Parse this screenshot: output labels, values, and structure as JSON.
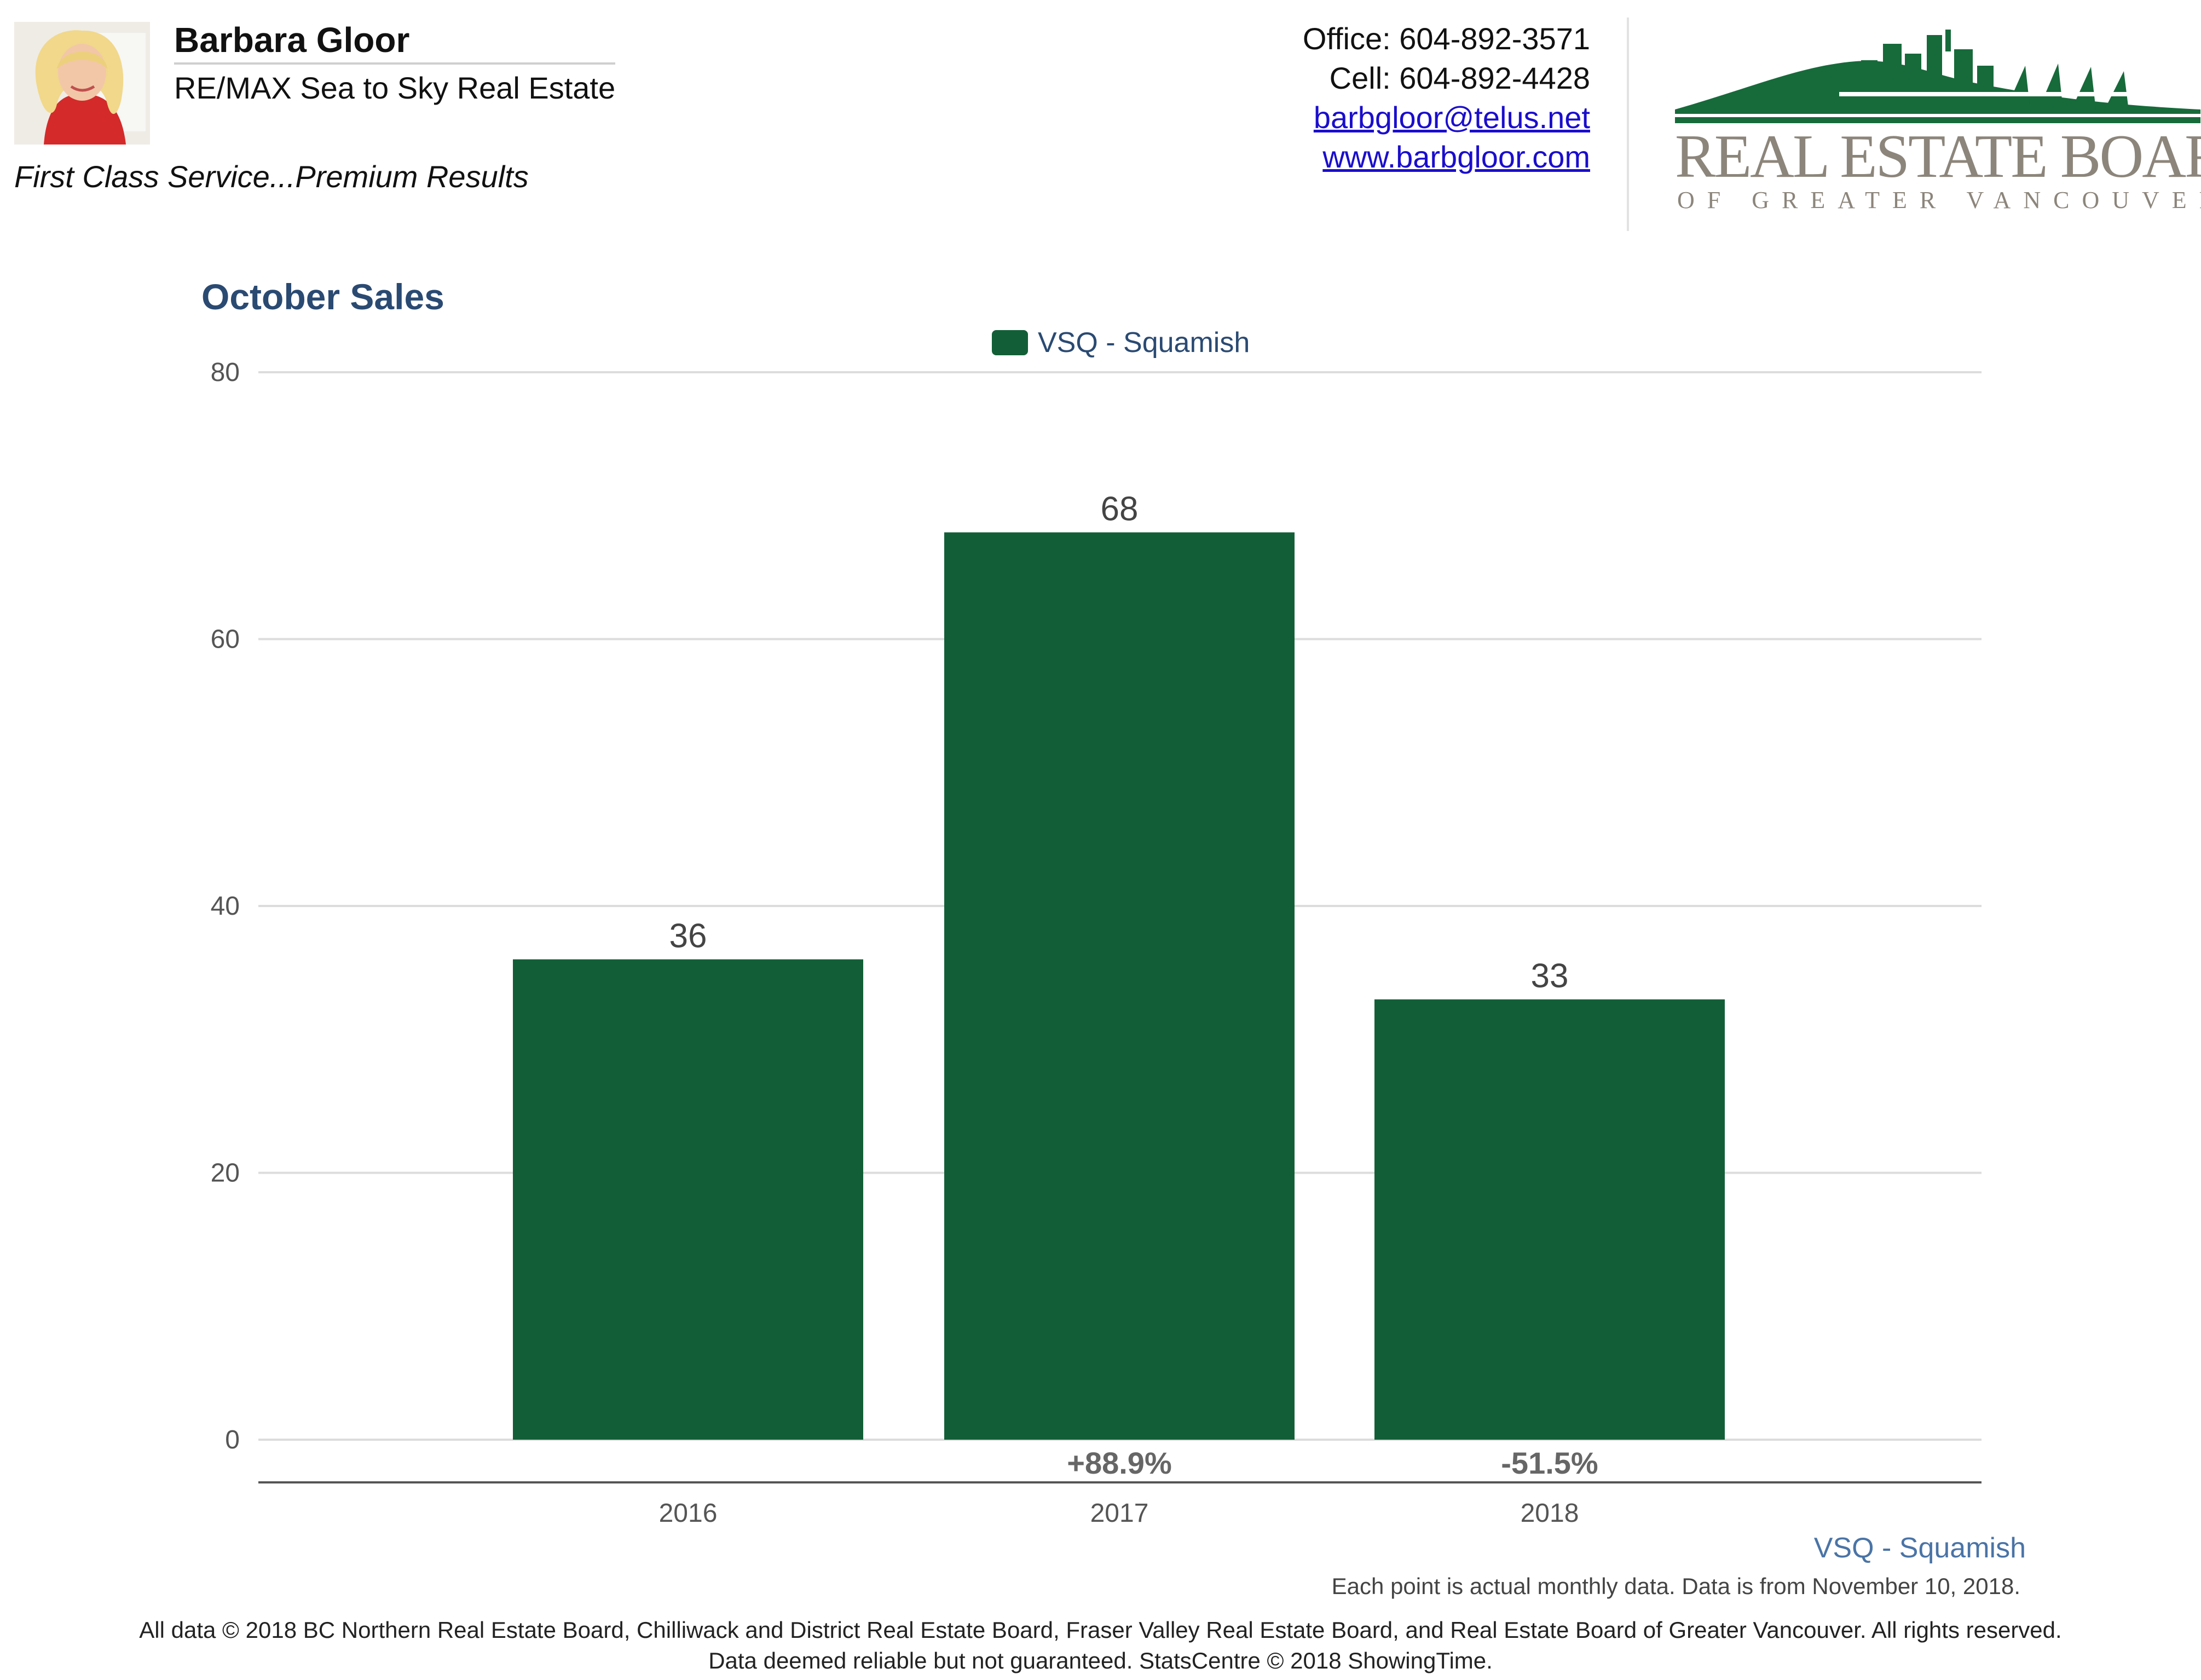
{
  "header": {
    "agent_name": "Barbara Gloor",
    "brokerage": "RE/MAX Sea to Sky Real Estate",
    "tagline": "First Class Service...Premium Results",
    "office": "Office: 604-892-3571",
    "cell": "Cell: 604-892-4428",
    "email": "barbgloor@telus.net",
    "website": "www.barbgloor.com",
    "board_logo_line1": "REAL ESTATE BOARD",
    "board_logo_line2": "OF GREATER VANCOUVER"
  },
  "colors": {
    "bar": "#125f37",
    "title": "#2a4a72",
    "logo_green": "#176a3a",
    "logo_gray": "#8c857b"
  },
  "chart_data": {
    "type": "bar",
    "title": "October Sales",
    "categories": [
      "2016",
      "2017",
      "2018"
    ],
    "series": [
      {
        "name": "VSQ - Squamish",
        "values": [
          36,
          68,
          33
        ]
      }
    ],
    "data_labels": [
      "36",
      "68",
      "33"
    ],
    "change_labels": [
      "",
      "+88.9%",
      "-51.5%"
    ],
    "yticks": [
      "0",
      "20",
      "40",
      "60",
      "80"
    ],
    "ylim": [
      0,
      80
    ],
    "grid": true,
    "legend_position": "top-center"
  },
  "footer": {
    "series_label": "VSQ - Squamish",
    "note": "Each point is actual monthly data. Data is from November 10, 2018.",
    "copyright": "All data © 2018 BC Northern Real Estate Board, Chilliwack and District Real Estate Board, Fraser Valley Real Estate Board, and Real Estate Board of Greater Vancouver. All rights reserved.",
    "disclaimer": "Data deemed reliable but not guaranteed. StatsCentre © 2018 ShowingTime."
  }
}
